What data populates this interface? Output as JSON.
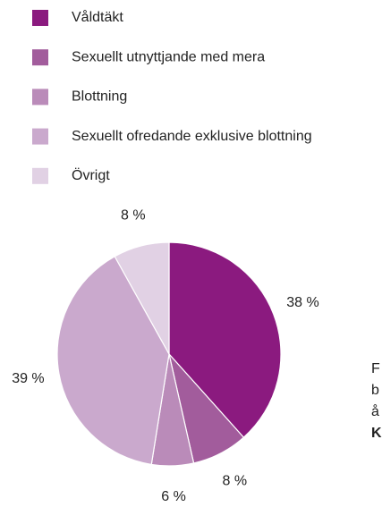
{
  "chart_data": {
    "type": "pie",
    "categories": [
      "Våldtäkt",
      "Sexuellt utnyttjande med mera",
      "Blottning",
      "Sexuellt ofredande exklusive blottning",
      "Övrigt"
    ],
    "values": [
      38,
      8,
      6,
      39,
      8
    ],
    "value_labels": [
      "38 %",
      "8 %",
      "6 %",
      "39 %",
      "8 %"
    ],
    "colors": [
      "#8b1a7f",
      "#a25c9c",
      "#ba8bb9",
      "#caa9cd",
      "#e1d1e4"
    ]
  },
  "side_text": [
    "F",
    "b",
    "å",
    "K"
  ]
}
